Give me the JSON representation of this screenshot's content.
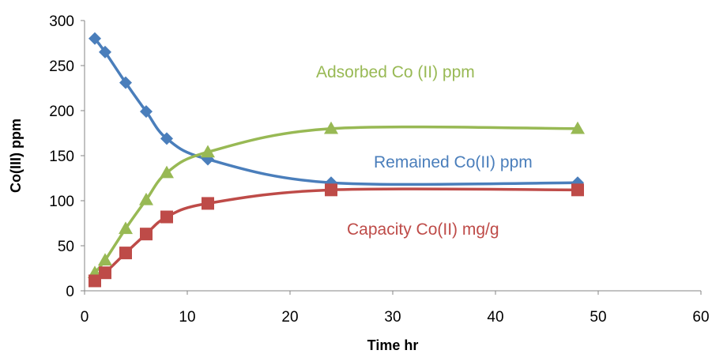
{
  "chart_data": {
    "type": "line",
    "title": "",
    "xlabel": "Time hr",
    "ylabel": "Co(III) ppm",
    "xlim": [
      0,
      60
    ],
    "ylim": [
      0,
      300
    ],
    "xticks": [
      0,
      10,
      20,
      30,
      40,
      50,
      60
    ],
    "yticks": [
      0,
      50,
      100,
      150,
      200,
      250,
      300
    ],
    "grid": false,
    "legend": "none",
    "series": [
      {
        "name": "Remained Co(II) ppm",
        "color": "#4a7ebb",
        "marker": "diamond",
        "x": [
          1,
          2,
          4,
          6,
          8,
          12,
          24,
          48
        ],
        "y": [
          280,
          265,
          231,
          199,
          169,
          146,
          120,
          120
        ]
      },
      {
        "name": "Adsorbed Co (II) ppm",
        "color": "#98b954",
        "marker": "triangle",
        "x": [
          1,
          2,
          4,
          6,
          8,
          12,
          24,
          48
        ],
        "y": [
          20,
          34,
          69,
          101,
          131,
          154,
          180,
          180
        ]
      },
      {
        "name": "Capacity Co(II) mg/g",
        "color": "#be4b48",
        "marker": "square",
        "x": [
          1,
          2,
          4,
          6,
          8,
          12,
          24,
          48
        ],
        "y": [
          11,
          20,
          42,
          63,
          82,
          97,
          112,
          112
        ]
      }
    ]
  }
}
